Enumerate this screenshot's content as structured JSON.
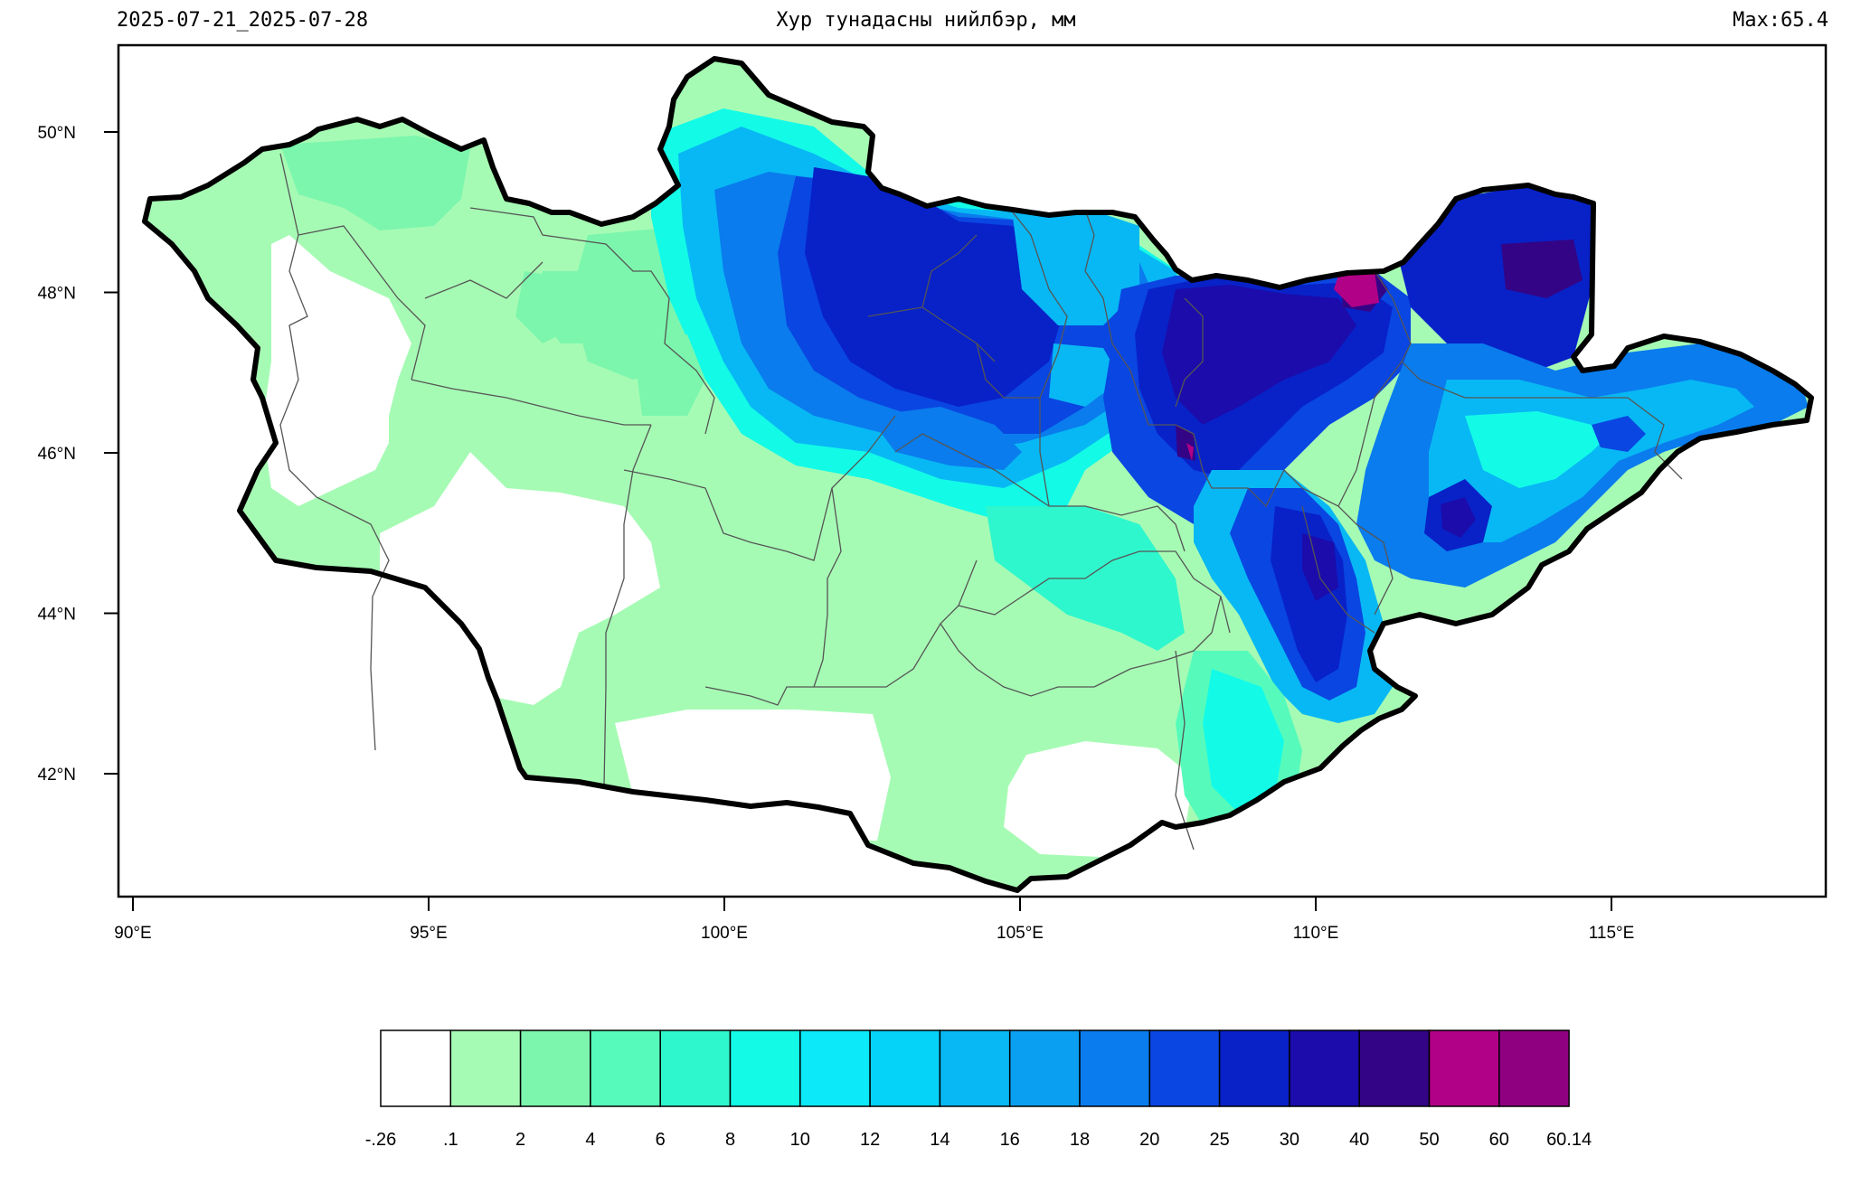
{
  "header": {
    "date_range": "2025-07-21_2025-07-28",
    "title": "Хур тунадасны нийлбэр, мм",
    "max": "Max:65.4"
  },
  "map": {
    "lon_range": [
      89.8,
      118.9
    ],
    "lat_range": [
      40.3,
      51.0
    ],
    "lon_ticks": [
      "90°E",
      "95°E",
      "100°E",
      "105°E",
      "110°E",
      "115°E"
    ],
    "lat_ticks": [
      "50°N",
      "48°N",
      "46°N",
      "44°N",
      "42°N"
    ],
    "region": "Mongolia"
  },
  "colorbar": {
    "labels": [
      "-.26",
      ".1",
      "2",
      "4",
      "6",
      "8",
      "10",
      "12",
      "14",
      "16",
      "18",
      "20",
      "25",
      "30",
      "40",
      "50",
      "60",
      "60.14"
    ],
    "colors": [
      "#ffffff",
      "#a6fbb4",
      "#7cf6ad",
      "#56fbbb",
      "#2ff7cd",
      "#13fbe7",
      "#0ce9f9",
      "#06d3f8",
      "#08b8f4",
      "#0b9ff2",
      "#0a7ced",
      "#0a46e1",
      "#0822c8",
      "#1b0cab",
      "#330486",
      "#b10186",
      "#8f0080"
    ]
  }
}
